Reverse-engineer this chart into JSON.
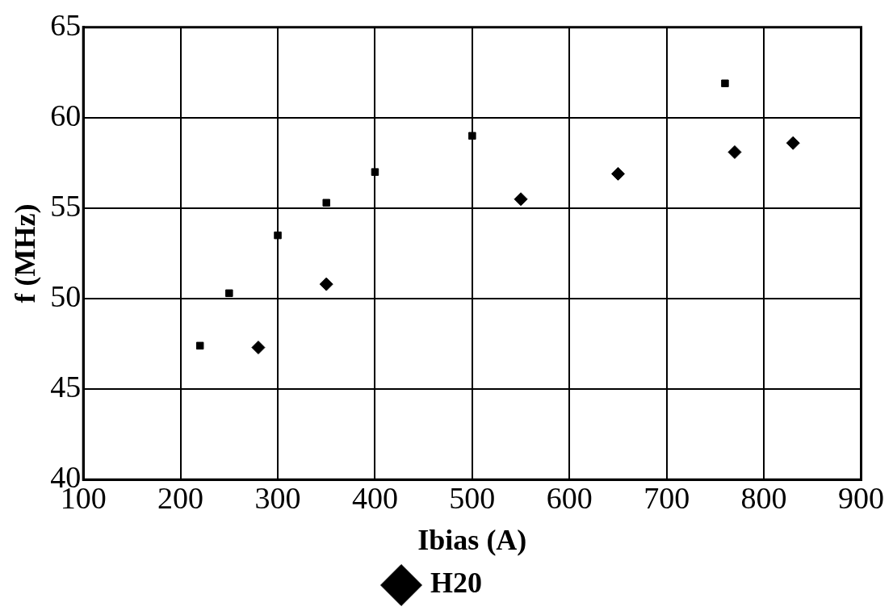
{
  "chart_data": {
    "type": "scatter",
    "xlabel": "Ibias (A)",
    "ylabel": "f (MHz)",
    "xlim": [
      100,
      900
    ],
    "xticks": [
      100,
      200,
      300,
      400,
      500,
      600,
      700,
      800,
      900
    ],
    "ylim": [
      40,
      65
    ],
    "yticks": [
      40,
      45,
      50,
      55,
      60,
      65
    ],
    "grid": true,
    "legend": "bottom",
    "series": [
      {
        "color": "#000000",
        "marker": "square",
        "x": [
          220,
          250,
          300,
          350,
          400,
          500,
          760
        ],
        "values": [
          47.4,
          50.3,
          53.5,
          55.3,
          57,
          59,
          61.9
        ]
      },
      {
        "name": "H20",
        "color": "#000000",
        "marker": "diamond",
        "x": [
          280,
          350,
          550,
          650,
          770,
          830
        ],
        "values": [
          47.3,
          50.8,
          55.5,
          56.9,
          58.1,
          58.6
        ]
      }
    ]
  }
}
